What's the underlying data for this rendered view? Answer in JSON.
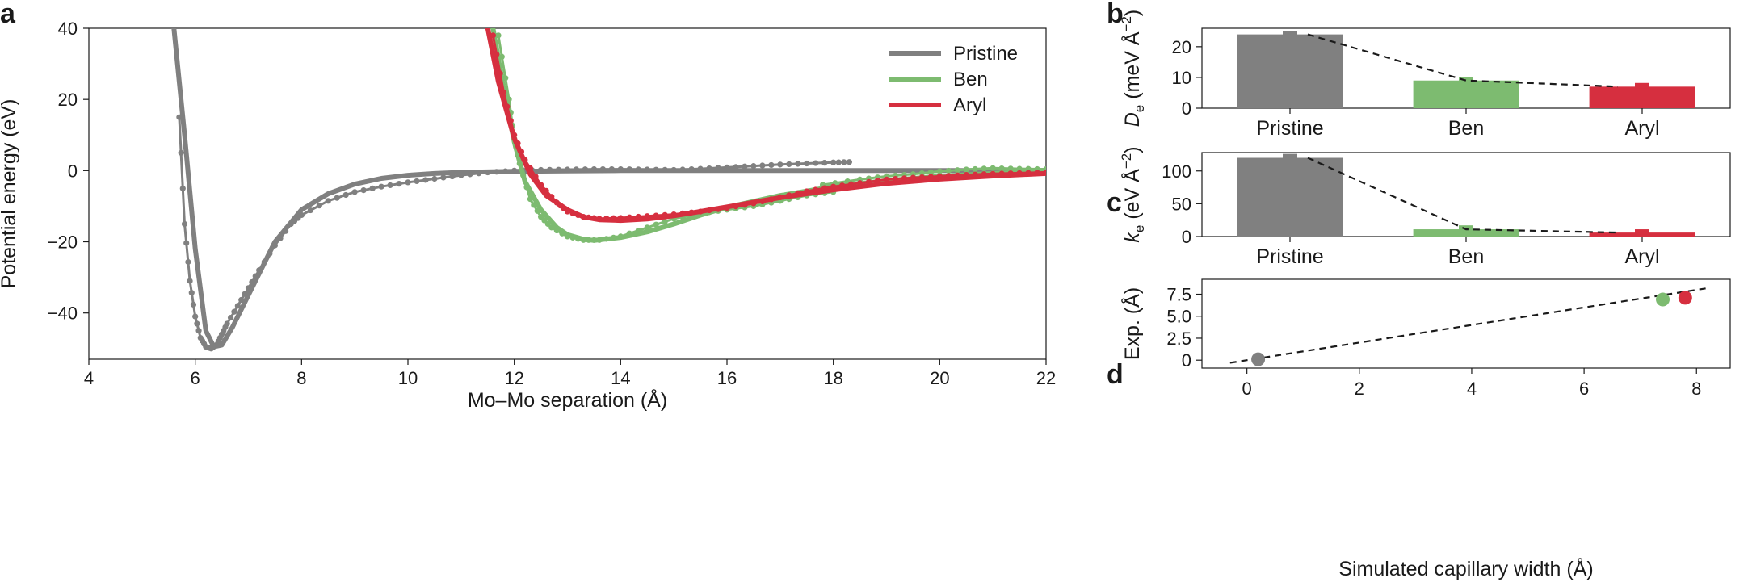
{
  "colors": {
    "pristine": "#808080",
    "ben": "#7dbb70",
    "aryl": "#d62f3f",
    "axis": "#1a1a1a"
  },
  "chart_data": [
    {
      "panel": "a",
      "type": "line",
      "xlabel": "Mo–Mo separation (Å)",
      "ylabel": "Potential energy (eV)",
      "xlim": [
        4,
        22
      ],
      "ylim": [
        -53,
        40
      ],
      "xticks": [
        4,
        6,
        8,
        10,
        12,
        14,
        16,
        18,
        20,
        22
      ],
      "yticks": [
        -40,
        -20,
        0,
        20,
        40
      ],
      "grid": false,
      "legend_position": "top-right",
      "series": [
        {
          "name": "Pristine",
          "color_key": "pristine",
          "fit": {
            "x": [
              5.6,
              5.8,
              6.0,
              6.2,
              6.35,
              6.5,
              6.7,
              7.0,
              7.5,
              8.0,
              8.5,
              9.0,
              9.5,
              10.0,
              10.5,
              11.0,
              12.0,
              13.0,
              14.0,
              16.0,
              18.0,
              20.0,
              22.0
            ],
            "y": [
              40,
              10,
              -22,
              -45,
              -49.5,
              -49,
              -44,
              -35,
              -20,
              -11,
              -6.5,
              -3.8,
              -2.2,
              -1.3,
              -0.8,
              -0.5,
              -0.2,
              -0.1,
              0,
              0,
              0,
              0,
              0
            ]
          },
          "sim": {
            "x": [
              5.7,
              5.8,
              5.9,
              6.0,
              6.1,
              6.2,
              6.3,
              6.4,
              6.5,
              6.6,
              6.8,
              7.0,
              7.2,
              7.5,
              7.8,
              8.0,
              8.5,
              9.0,
              9.5,
              10.0,
              10.5,
              11.0,
              11.5,
              12.0,
              12.5,
              13.0,
              13.5,
              14.0,
              14.5,
              15.0,
              15.5,
              16.0,
              16.5,
              17.0,
              17.5,
              18.0,
              18.3
            ],
            "y": [
              15,
              -15,
              -31,
              -41,
              -47,
              -49.5,
              -50,
              -49,
              -46,
              -43,
              -38,
              -33,
              -28,
              -21,
              -15,
              -12.5,
              -8.5,
              -6,
              -4.5,
              -3.3,
              -2.3,
              -1.3,
              -0.5,
              0,
              0.2,
              0.3,
              0.4,
              0.4,
              0.3,
              0.2,
              0.5,
              0.9,
              1.3,
              1.7,
              2.0,
              2.3,
              2.4
            ]
          }
        },
        {
          "name": "Ben",
          "color_key": "ben",
          "fit": {
            "x": [
              11.6,
              11.8,
              12.0,
              12.2,
              12.5,
              12.8,
              13.0,
              13.3,
              13.5,
              14.0,
              14.5,
              15.0,
              15.5,
              16.0,
              17.0,
              18.0,
              19.0,
              20.0,
              21.0,
              22.0
            ],
            "y": [
              40,
              23,
              8,
              -3,
              -11,
              -16,
              -18,
              -19.3,
              -19.6,
              -18.8,
              -17.2,
              -15,
              -12.5,
              -10.3,
              -7,
              -4.5,
              -2.8,
              -1.6,
              -0.8,
              -0.2
            ]
          },
          "sim": {
            "x": [
              11.7,
              11.9,
              12.0,
              12.1,
              12.3,
              12.5,
              12.7,
              13.0,
              13.3,
              13.6,
              14.0,
              14.5,
              15.0,
              15.5,
              16.0,
              16.5,
              17.0,
              17.5,
              18.0
            ],
            "y": [
              38,
              20,
              9,
              2,
              -8,
              -13,
              -16,
              -18.5,
              -19.5,
              -19.5,
              -18.5,
              -16,
              -13.5,
              -12,
              -11,
              -10,
              -8.5,
              -7,
              -6
            ]
          },
          "sim2": {
            "x": [
              17.8,
              18.5,
              19.0,
              19.5,
              20.0,
              20.5,
              21.0,
              21.5,
              22.0
            ],
            "y": [
              -4,
              -2.5,
              -1.6,
              -1.0,
              -0.2,
              0.3,
              0.7,
              0.5,
              0.4
            ]
          }
        },
        {
          "name": "Aryl",
          "color_key": "aryl",
          "fit": {
            "x": [
              11.5,
              11.7,
              12.0,
              12.3,
              12.6,
              13.0,
              13.3,
              13.6,
              14.0,
              14.5,
              15.0,
              15.5,
              16.0,
              17.0,
              18.0,
              19.0,
              20.0,
              21.0,
              22.0
            ],
            "y": [
              40,
              25,
              9,
              -1,
              -7,
              -11,
              -13,
              -13.8,
              -14,
              -13.6,
              -12.7,
              -11.5,
              -10.2,
              -7.6,
              -5.4,
              -3.6,
              -2.4,
              -1.5,
              -0.8
            ]
          },
          "sim": {
            "x": [
              11.6,
              11.8,
              12.0,
              12.2,
              12.5,
              12.8,
              13.0,
              13.3,
              13.6,
              14.0,
              14.5,
              15.0,
              15.5,
              16.0,
              16.5,
              17.0,
              17.5,
              18.0,
              18.5,
              19.0,
              19.5,
              20.0,
              20.5,
              21.0,
              21.5,
              22.0
            ],
            "y": [
              38,
              22,
              10,
              3,
              -4,
              -9,
              -11.5,
              -13,
              -13.5,
              -13.3,
              -12.8,
              -12.3,
              -11.5,
              -10.5,
              -9.2,
              -7.5,
              -5.8,
              -4.5,
              -3.5,
              -2.5,
              -2,
              -1.6,
              -1.2,
              -0.9,
              -0.7,
              -0.5
            ]
          }
        }
      ]
    },
    {
      "panel": "b",
      "type": "bar",
      "categories": [
        "Pristine",
        "Ben",
        "Aryl"
      ],
      "ylabel_main": "D",
      "ylabel_sub": "e",
      "ylabel_unit_pre": " (meV Å",
      "ylabel_unit_sup": "−2",
      "ylabel_unit_post": ")",
      "ylim": [
        0,
        26
      ],
      "yticks": [
        0,
        10,
        20
      ],
      "values": [
        24,
        9,
        7
      ],
      "marker_values": [
        25,
        10.2,
        8.2
      ],
      "trend_values": [
        24,
        9,
        7
      ]
    },
    {
      "panel": "c",
      "type": "bar",
      "categories": [
        "Pristine",
        "Ben",
        "Aryl"
      ],
      "ylabel_main": "k",
      "ylabel_sub": "e",
      "ylabel_unit_pre": " (eV Å",
      "ylabel_unit_sup": "−2",
      "ylabel_unit_post": ")",
      "ylim": [
        0,
        128
      ],
      "yticks": [
        0,
        50,
        100
      ],
      "values": [
        120,
        11,
        6
      ],
      "marker_values": [
        126,
        17,
        11
      ],
      "trend_values": [
        120,
        11,
        6
      ]
    },
    {
      "panel": "d",
      "type": "scatter",
      "xlabel": "Simulated capillary width (Å)",
      "ylabel": "Exp. (Å)",
      "xlim": [
        -0.8,
        8.6
      ],
      "ylim": [
        -0.9,
        9.2
      ],
      "xticks": [
        0,
        2,
        4,
        6,
        8
      ],
      "yticks": [
        0,
        2.5,
        5.0,
        7.5
      ],
      "ytick_labels": [
        "0",
        "2.5",
        "5.0",
        "7.5"
      ],
      "points": [
        {
          "x": 0.2,
          "y": 0.1,
          "color_key": "pristine"
        },
        {
          "x": 7.4,
          "y": 6.9,
          "color_key": "ben"
        },
        {
          "x": 7.8,
          "y": 7.1,
          "color_key": "aryl"
        }
      ],
      "trend_line": {
        "x": [
          -0.3,
          8.2
        ],
        "y": [
          -0.3,
          8.2
        ]
      }
    }
  ]
}
